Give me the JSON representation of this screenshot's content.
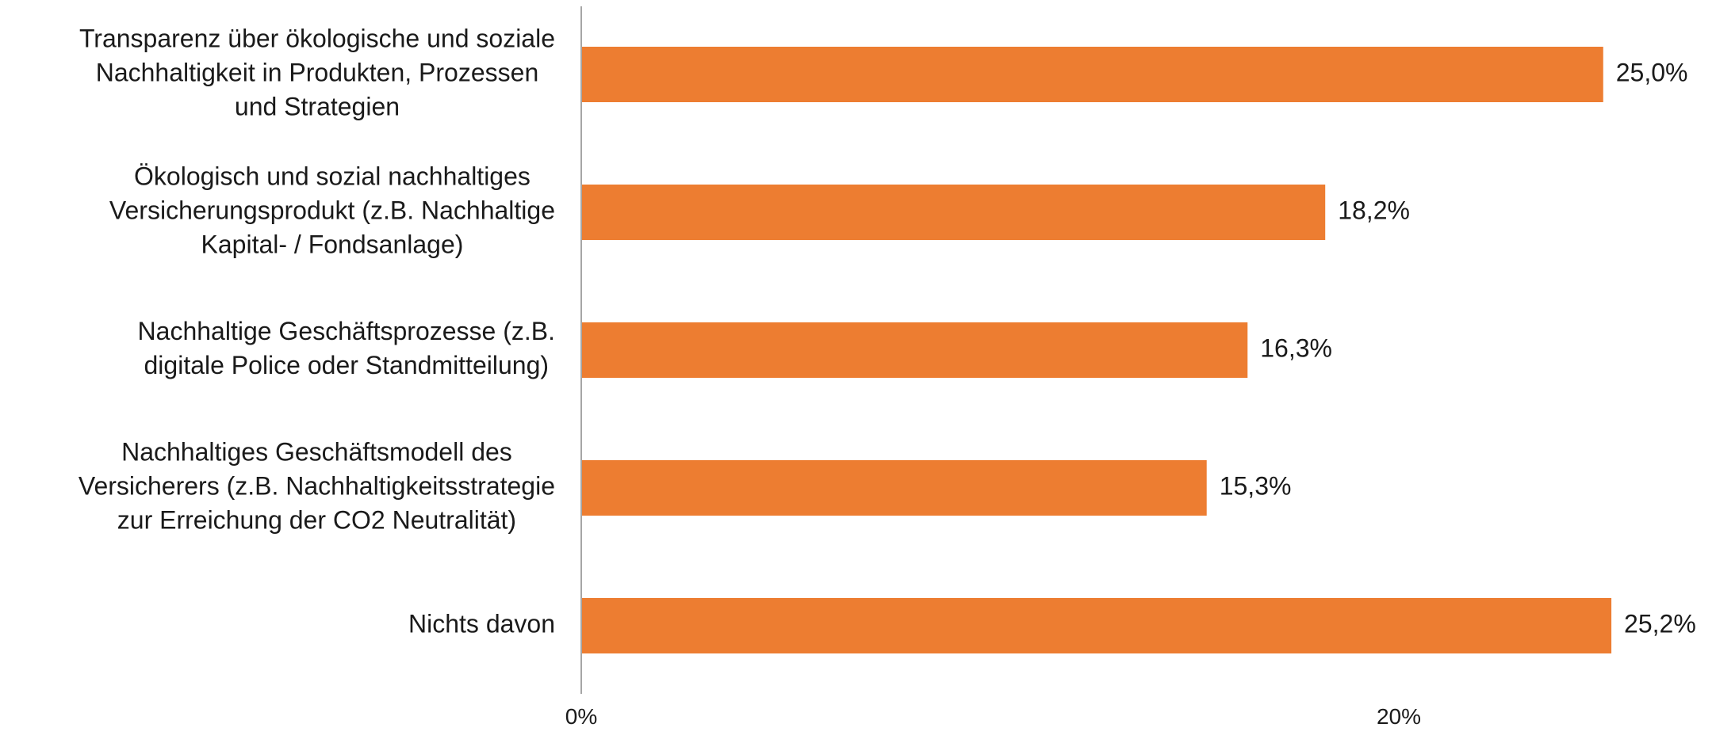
{
  "chart_data": {
    "type": "bar",
    "orientation": "horizontal",
    "categories": [
      [
        "Transparenz über ökologische und soziale",
        "Nachhaltigkeit in Produkten, Prozessen",
        "und Strategien"
      ],
      [
        "Ökologisch und sozial nachhaltiges",
        "Versicherungsprodukt (z.B. Nachhaltige",
        "Kapital- / Fondsanlage)"
      ],
      [
        "Nachhaltige Geschäftsprozesse (z.B.",
        "digitale Police oder Standmitteilung)"
      ],
      [
        "Nachhaltiges Geschäftsmodell des",
        "Versicherers (z.B. Nachhaltigkeitsstrategie",
        "zur Erreichung der CO2 Neutralität)"
      ],
      [
        "Nichts davon"
      ]
    ],
    "values": [
      25.0,
      18.2,
      16.3,
      15.3,
      25.2
    ],
    "value_labels": [
      "25,0%",
      "18,2%",
      "16,3%",
      "15,3%",
      "25,2%"
    ],
    "xlim": [
      0,
      27.6
    ],
    "xticks": [
      0,
      20
    ],
    "xtick_labels": [
      "0%",
      "20%"
    ],
    "title": "",
    "xlabel": "",
    "ylabel": "",
    "grid": false,
    "bar_color": "#ED7D31",
    "axis_color": "#A6A6A6"
  }
}
